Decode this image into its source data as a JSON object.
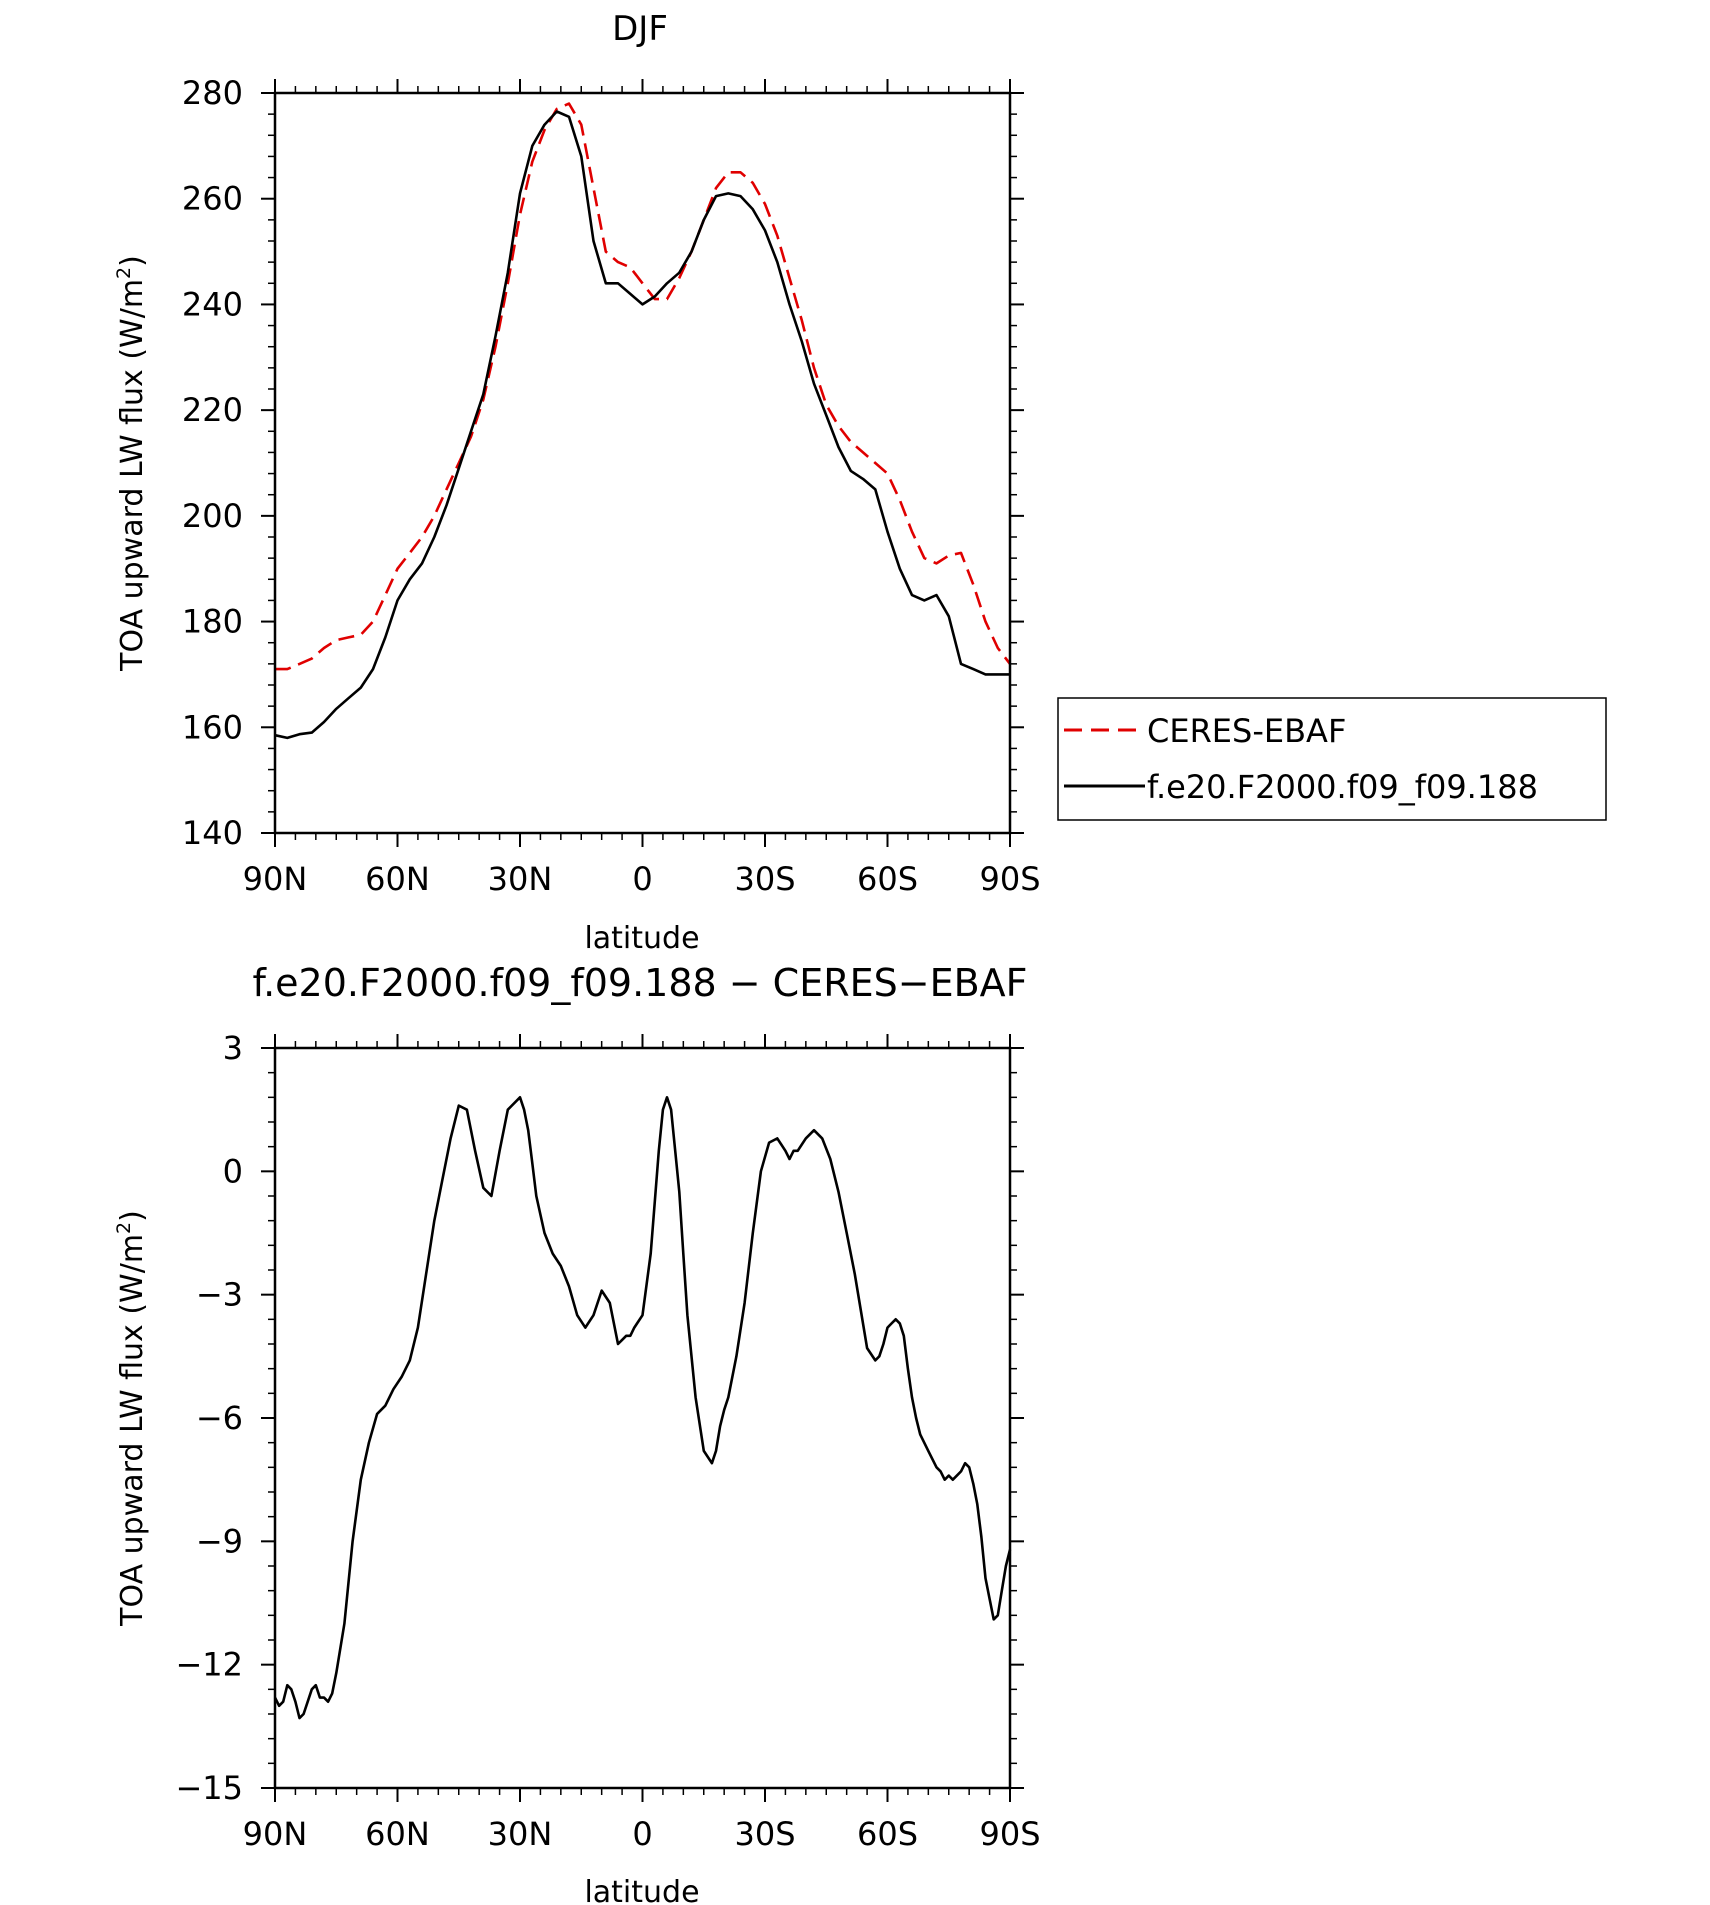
{
  "chart_data": [
    {
      "type": "line",
      "title": "DJF",
      "xlabel": "latitude",
      "ylabel": "TOA upward LW flux (W/m",
      "ylabel_sup": "2",
      "ylabel_close": ")",
      "xlim": [
        90,
        -90
      ],
      "ylim": [
        140,
        280
      ],
      "x_ticks": [
        90,
        60,
        30,
        0,
        -30,
        -60,
        -90
      ],
      "x_tick_labels": [
        "90N",
        "60N",
        "30N",
        "0",
        "30S",
        "60S",
        "90S"
      ],
      "y_ticks": [
        140,
        160,
        180,
        200,
        220,
        240,
        260,
        280
      ],
      "y_tick_labels": [
        "140",
        "160",
        "180",
        "200",
        "220",
        "240",
        "260",
        "280"
      ],
      "legend": "outside-right",
      "series": [
        {
          "name": "CERES-EBAF",
          "color": "#e00000",
          "dash": "dashed",
          "x": [
            90,
            87,
            84,
            81,
            78,
            75,
            72,
            69,
            66,
            63,
            60,
            57,
            54,
            51,
            48,
            45,
            42,
            39,
            36,
            33,
            30,
            27,
            24,
            21,
            18,
            15,
            12,
            9,
            6,
            3,
            0,
            -3,
            -6,
            -9,
            -12,
            -15,
            -18,
            -21,
            -24,
            -27,
            -30,
            -33,
            -36,
            -39,
            -42,
            -45,
            -48,
            -51,
            -54,
            -57,
            -60,
            -63,
            -66,
            -69,
            -72,
            -75,
            -78,
            -81,
            -84,
            -87,
            -90
          ],
          "values": [
            171,
            171,
            172,
            173,
            175,
            176.5,
            177,
            177.5,
            180,
            185,
            190,
            193,
            196,
            200,
            205,
            210,
            215,
            222,
            232,
            244,
            257,
            267,
            273,
            277,
            278,
            274,
            262,
            250,
            248,
            247,
            244,
            241,
            241,
            245,
            250,
            256,
            262,
            265,
            265,
            263,
            259,
            253,
            245,
            237,
            228,
            221,
            217,
            214,
            212,
            210,
            208,
            203,
            197,
            192,
            191,
            192.5,
            193,
            187,
            180,
            175,
            172
          ]
        },
        {
          "name": "f.e20.F2000.f09_f09.188",
          "color": "#000000",
          "dash": "solid",
          "x": [
            90,
            87,
            84,
            81,
            78,
            75,
            72,
            69,
            66,
            63,
            60,
            57,
            54,
            51,
            48,
            45,
            42,
            39,
            36,
            33,
            30,
            27,
            24,
            21,
            18,
            15,
            12,
            9,
            6,
            3,
            0,
            -3,
            -6,
            -9,
            -12,
            -15,
            -18,
            -21,
            -24,
            -27,
            -30,
            -33,
            -36,
            -39,
            -42,
            -45,
            -48,
            -51,
            -54,
            -57,
            -60,
            -63,
            -66,
            -69,
            -72,
            -75,
            -78,
            -81,
            -84,
            -87,
            -90
          ],
          "values": [
            158.5,
            158,
            158.7,
            159,
            161,
            163.5,
            165.5,
            167.5,
            171,
            177,
            184,
            188,
            191,
            196,
            202,
            209,
            216,
            223,
            234,
            246,
            261,
            270,
            274,
            276.5,
            275.5,
            268,
            252,
            244,
            244,
            242,
            240,
            241.5,
            244,
            246,
            250,
            256,
            260.5,
            261,
            260.5,
            258,
            254,
            248,
            240,
            233,
            225,
            219,
            213,
            208.5,
            207,
            205,
            197,
            190,
            185,
            184,
            185,
            181,
            172,
            171,
            170,
            170,
            170
          ]
        }
      ]
    },
    {
      "type": "line",
      "title": "f.e20.F2000.f09_f09.188 − CERES−EBAF",
      "xlabel": "latitude",
      "ylabel": "TOA upward LW flux (W/m",
      "ylabel_sup": "2",
      "ylabel_close": ")",
      "xlim": [
        90,
        -90
      ],
      "ylim": [
        -15,
        3
      ],
      "x_ticks": [
        90,
        60,
        30,
        0,
        -30,
        -60,
        -90
      ],
      "x_tick_labels": [
        "90N",
        "60N",
        "30N",
        "0",
        "30S",
        "60S",
        "90S"
      ],
      "y_ticks": [
        -15,
        -12,
        -9,
        -6,
        -3,
        0,
        3
      ],
      "y_tick_labels": [
        "−15",
        "−12",
        "−9",
        "−6",
        "−3",
        "0",
        "3"
      ],
      "series": [
        {
          "color": "#000000",
          "dash": "solid",
          "x": [
            90,
            89,
            88,
            87,
            86,
            85,
            84,
            83,
            82,
            81,
            80,
            79,
            78,
            77,
            76,
            75,
            73,
            71,
            69,
            67,
            65,
            63,
            61,
            59,
            57,
            55,
            53,
            51,
            49,
            47,
            45,
            43,
            41,
            39,
            37,
            35,
            33,
            32,
            30,
            29,
            28,
            27,
            26,
            24,
            22,
            20,
            18,
            16,
            14,
            12,
            10,
            8,
            6,
            5,
            4,
            3,
            2,
            0,
            -2,
            -4,
            -5,
            -6,
            -7,
            -8,
            -9,
            -10,
            -11,
            -13,
            -15,
            -17,
            -18,
            -19,
            -20,
            -21,
            -23,
            -25,
            -27,
            -29,
            -31,
            -33,
            -35,
            -36,
            -37,
            -38,
            -40,
            -42,
            -44,
            -46,
            -48,
            -50,
            -52,
            -55,
            -57,
            -58,
            -59,
            -60,
            -61,
            -62,
            -63,
            -64,
            -65,
            -66,
            -67,
            -68,
            -70,
            -72,
            -73,
            -74,
            -75,
            -76,
            -77,
            -78,
            -79,
            -80,
            -81,
            -82,
            -83,
            -84,
            -85,
            -86,
            -87,
            -88,
            -89,
            -90
          ],
          "values": [
            -12.8,
            -13.0,
            -12.9,
            -12.5,
            -12.6,
            -12.9,
            -13.3,
            -13.2,
            -12.9,
            -12.6,
            -12.5,
            -12.8,
            -12.8,
            -12.9,
            -12.7,
            -12.2,
            -11.0,
            -9.0,
            -7.5,
            -6.6,
            -5.9,
            -5.7,
            -5.3,
            -5.0,
            -4.6,
            -3.8,
            -2.5,
            -1.2,
            -0.2,
            0.8,
            1.6,
            1.5,
            0.5,
            -0.4,
            -0.6,
            0.5,
            1.5,
            1.6,
            1.8,
            1.5,
            1.0,
            0.2,
            -0.6,
            -1.5,
            -2.0,
            -2.3,
            -2.8,
            -3.5,
            -3.8,
            -3.5,
            -2.9,
            -3.2,
            -4.2,
            -4.1,
            -4.0,
            -4.0,
            -3.8,
            -3.5,
            -2.0,
            0.5,
            1.5,
            1.8,
            1.5,
            0.5,
            -0.5,
            -2.0,
            -3.5,
            -5.5,
            -6.8,
            -7.1,
            -6.8,
            -6.2,
            -5.8,
            -5.5,
            -4.5,
            -3.2,
            -1.5,
            0.0,
            0.7,
            0.8,
            0.5,
            0.3,
            0.5,
            0.5,
            0.8,
            1.0,
            0.8,
            0.3,
            -0.5,
            -1.5,
            -2.5,
            -4.3,
            -4.6,
            -4.5,
            -4.2,
            -3.8,
            -3.7,
            -3.6,
            -3.7,
            -4.0,
            -4.8,
            -5.5,
            -6.0,
            -6.4,
            -6.8,
            -7.2,
            -7.3,
            -7.5,
            -7.4,
            -7.5,
            -7.4,
            -7.3,
            -7.1,
            -7.2,
            -7.6,
            -8.1,
            -8.9,
            -9.9,
            -10.4,
            -10.9,
            -10.8,
            -10.2,
            -9.6,
            -9.2
          ]
        }
      ]
    }
  ]
}
